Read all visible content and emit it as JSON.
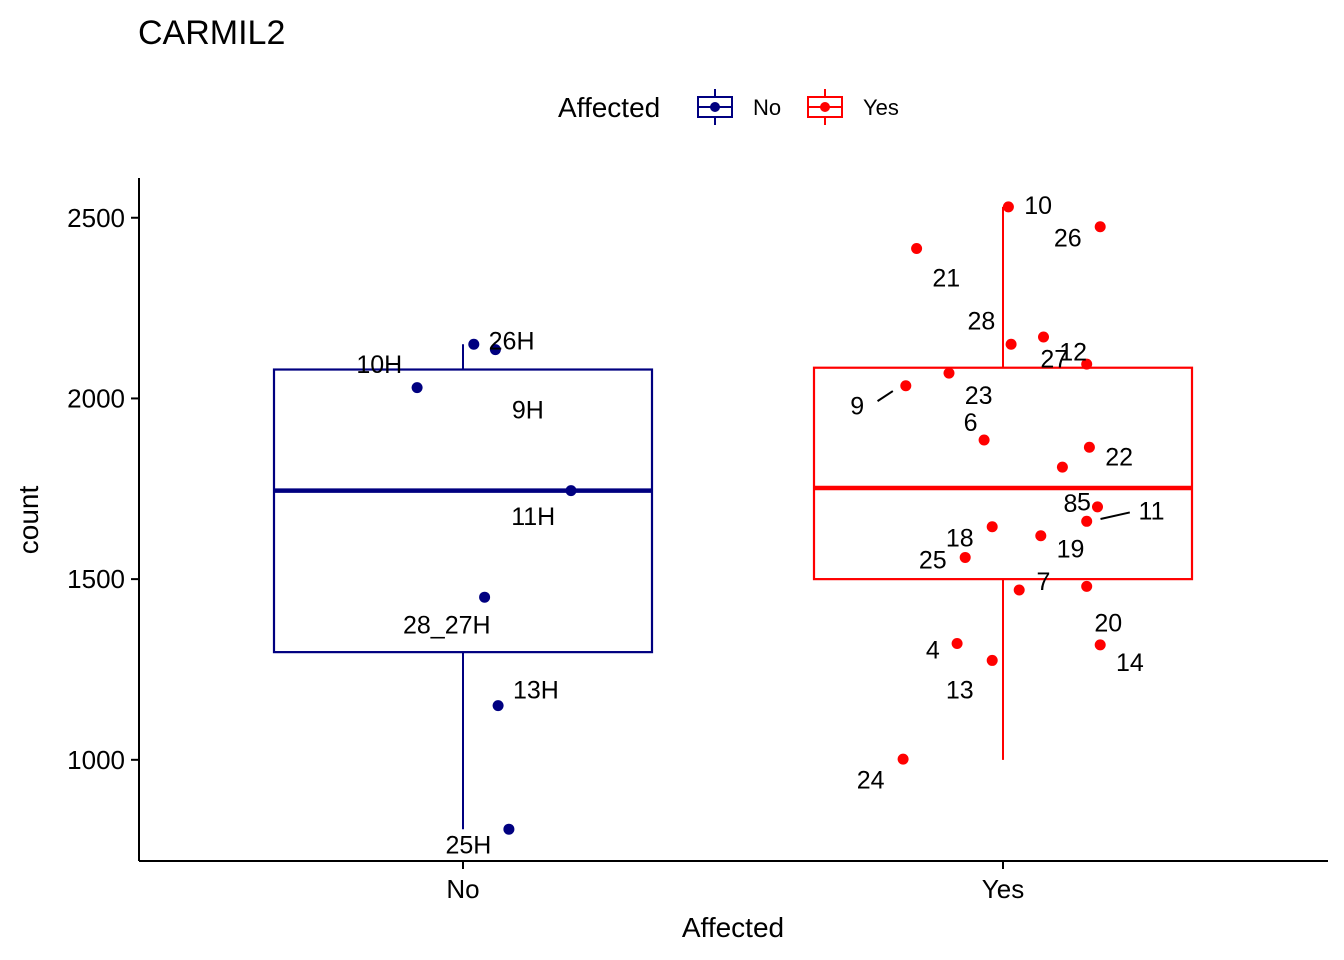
{
  "chart_data": {
    "type": "box",
    "title": "CARMIL2",
    "xlabel": "Affected",
    "ylabel": "count",
    "categories": [
      "No",
      "Yes"
    ],
    "ylim": [
      720,
      2610
    ],
    "yticks": [
      1000,
      1500,
      2000,
      2500
    ],
    "legend": {
      "title": "Affected",
      "position": "top",
      "entries": [
        {
          "label": "No",
          "color": "#000080"
        },
        {
          "label": "Yes",
          "color": "#FF0000"
        }
      ]
    },
    "boxes": [
      {
        "category": "No",
        "color": "#000080",
        "whisker_low": 808,
        "q1": 1298,
        "median": 1745,
        "q3": 2080,
        "whisker_high": 2150
      },
      {
        "category": "Yes",
        "color": "#FF0000",
        "whisker_low": 1000,
        "q1": 1500,
        "median": 1752,
        "q3": 2085,
        "whisker_high": 2530
      }
    ],
    "points": [
      {
        "group": "No",
        "jitter": -0.085,
        "value": 2030,
        "label": "10H",
        "label_dx": -0.07,
        "label_dy": 2095,
        "leader": false
      },
      {
        "group": "No",
        "jitter": 0.02,
        "value": 2150,
        "label": "26H",
        "label_dx": 0.07,
        "label_dy": 2160,
        "leader": false
      },
      {
        "group": "No",
        "jitter": 0.06,
        "value": 2135,
        "label": "9H",
        "label_dx": 0.06,
        "label_dy": 1970,
        "leader": false
      },
      {
        "group": "No",
        "jitter": 0.2,
        "value": 1745,
        "label": "11H",
        "label_dx": -0.07,
        "label_dy": 1675,
        "leader": false
      },
      {
        "group": "No",
        "jitter": 0.04,
        "value": 1450,
        "label": "28_27H",
        "label_dx": -0.07,
        "label_dy": 1375,
        "leader": false
      },
      {
        "group": "No",
        "jitter": 0.065,
        "value": 1150,
        "label": "13H",
        "label_dx": 0.07,
        "label_dy": 1195,
        "leader": false
      },
      {
        "group": "No",
        "jitter": 0.085,
        "value": 808,
        "label": "25H",
        "label_dx": -0.075,
        "label_dy": 765,
        "leader": false
      },
      {
        "group": "Yes",
        "jitter": 0.01,
        "value": 2530,
        "label": "10",
        "label_dx": 0.055,
        "label_dy": 2535,
        "leader": false
      },
      {
        "group": "Yes",
        "jitter": 0.18,
        "value": 2475,
        "label": "26",
        "label_dx": -0.06,
        "label_dy": 2445,
        "leader": false
      },
      {
        "group": "Yes",
        "jitter": -0.16,
        "value": 2415,
        "label": "21",
        "label_dx": 0.055,
        "label_dy": 2335,
        "leader": false
      },
      {
        "group": "Yes",
        "jitter": 0.015,
        "value": 2150,
        "label": "28",
        "label_dx": -0.055,
        "label_dy": 2215,
        "leader": false
      },
      {
        "group": "Yes",
        "jitter": 0.075,
        "value": 2170,
        "label": "12",
        "label_dx": 0.055,
        "label_dy": 2130,
        "leader": false
      },
      {
        "group": "Yes",
        "jitter": 0.155,
        "value": 2095,
        "label": "27",
        "label_dx": -0.06,
        "label_dy": 2110,
        "leader": false
      },
      {
        "group": "Yes",
        "jitter": -0.1,
        "value": 2070,
        "label": "23",
        "label_dx": 0.055,
        "label_dy": 2010,
        "leader": false
      },
      {
        "group": "Yes",
        "jitter": -0.18,
        "value": 2035,
        "label": "9",
        "label_dx": -0.09,
        "label_dy": 1980,
        "leader": true
      },
      {
        "group": "Yes",
        "jitter": -0.035,
        "value": 1885,
        "label": "6",
        "label_dx": -0.025,
        "label_dy": 1935,
        "leader": false
      },
      {
        "group": "Yes",
        "jitter": 0.16,
        "value": 1865,
        "label": "22",
        "label_dx": 0.055,
        "label_dy": 1840,
        "leader": false
      },
      {
        "group": "Yes",
        "jitter": 0.11,
        "value": 1810,
        "label": "5",
        "label_dx": 0.04,
        "label_dy": 1715,
        "leader": false
      },
      {
        "group": "Yes",
        "jitter": 0.175,
        "value": 1700,
        "label": "8",
        "label_dx": -0.05,
        "label_dy": 1710,
        "leader": false
      },
      {
        "group": "Yes",
        "jitter": 0.155,
        "value": 1660,
        "label": "11",
        "label_dx": 0.12,
        "label_dy": 1690,
        "leader": true
      },
      {
        "group": "Yes",
        "jitter": -0.02,
        "value": 1645,
        "label": "18",
        "label_dx": -0.06,
        "label_dy": 1615,
        "leader": false
      },
      {
        "group": "Yes",
        "jitter": 0.07,
        "value": 1620,
        "label": "19",
        "label_dx": 0.055,
        "label_dy": 1585,
        "leader": false
      },
      {
        "group": "Yes",
        "jitter": -0.07,
        "value": 1560,
        "label": "25",
        "label_dx": -0.06,
        "label_dy": 1555,
        "leader": false
      },
      {
        "group": "Yes",
        "jitter": 0.03,
        "value": 1470,
        "label": "7",
        "label_dx": 0.045,
        "label_dy": 1495,
        "leader": false
      },
      {
        "group": "Yes",
        "jitter": 0.155,
        "value": 1480,
        "label": "20",
        "label_dx": 0.04,
        "label_dy": 1380,
        "leader": false
      },
      {
        "group": "Yes",
        "jitter": -0.085,
        "value": 1322,
        "label": "4",
        "label_dx": -0.045,
        "label_dy": 1305,
        "leader": false
      },
      {
        "group": "Yes",
        "jitter": 0.18,
        "value": 1318,
        "label": "14",
        "label_dx": 0.055,
        "label_dy": 1270,
        "leader": false
      },
      {
        "group": "Yes",
        "jitter": -0.02,
        "value": 1275,
        "label": "13",
        "label_dx": -0.06,
        "label_dy": 1195,
        "leader": false
      },
      {
        "group": "Yes",
        "jitter": -0.185,
        "value": 1002,
        "label": "24",
        "label_dx": -0.06,
        "label_dy": 945,
        "leader": false
      }
    ]
  }
}
